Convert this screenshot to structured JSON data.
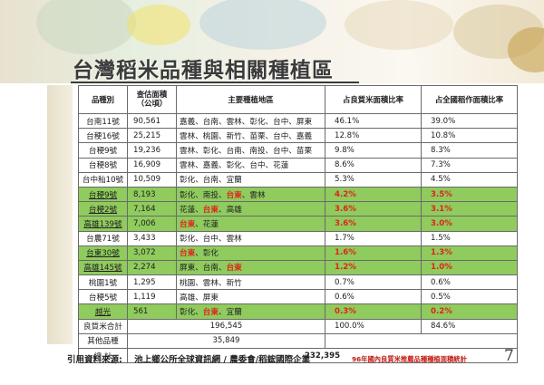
{
  "title": "台灣稻米品種與相關種植區",
  "headers": [
    "品種別",
    "查估面積\n（公頃）",
    "主要種植地區",
    "占良質米面積比率",
    "占全國稻作面積比率"
  ],
  "rows": [
    {
      "variety": "台南11號",
      "area": "90,561",
      "regions": [
        {
          "t": "嘉義、台南、雲林、彰化、台中、屏東"
        }
      ],
      "pct_quality": "46.1%",
      "pct_national": "39.0%",
      "hl": false,
      "red": false
    },
    {
      "variety": "台稉16號",
      "area": "25,215",
      "regions": [
        {
          "t": "雲林、桃園、新竹、苗栗、台中、嘉義"
        }
      ],
      "pct_quality": "12.8%",
      "pct_national": "10.8%",
      "hl": false,
      "red": false
    },
    {
      "variety": "台稉9號",
      "area": "19,236",
      "regions": [
        {
          "t": "雲林、彰化、台南、南投、台中、苗栗"
        }
      ],
      "pct_quality": "9.8%",
      "pct_national": "8.3%",
      "hl": false,
      "red": false
    },
    {
      "variety": "台稉8號",
      "area": "16,909",
      "regions": [
        {
          "t": "雲林、嘉義、彰化、台中、花蓮"
        }
      ],
      "pct_quality": "8.6%",
      "pct_national": "7.3%",
      "hl": false,
      "red": false
    },
    {
      "variety": "台中秈10號",
      "area": "10,509",
      "regions": [
        {
          "t": "彰化、台南、宜蘭"
        }
      ],
      "pct_quality": "5.3%",
      "pct_national": "4.5%",
      "hl": false,
      "red": false
    },
    {
      "variety": "台稉9號",
      "area": "8,193",
      "regions": [
        {
          "t": "彰化、南投、"
        },
        {
          "t": "台東",
          "r": true
        },
        {
          "t": "、雲林"
        }
      ],
      "pct_quality": "4.2%",
      "pct_national": "3.5%",
      "hl": true,
      "red": true,
      "ul": true
    },
    {
      "variety": "台稉2號",
      "area": "7,164",
      "regions": [
        {
          "t": "花蓮、"
        },
        {
          "t": "台東",
          "r": true
        },
        {
          "t": "、高雄"
        }
      ],
      "pct_quality": "3.6%",
      "pct_national": "3.1%",
      "hl": true,
      "red": true,
      "ul": true
    },
    {
      "variety": "高雄139號",
      "area": "7,006",
      "regions": [
        {
          "t": "台東",
          "r": true
        },
        {
          "t": "、花蓮"
        }
      ],
      "pct_quality": "3.6%",
      "pct_national": "3.0%",
      "hl": true,
      "red": true,
      "ul": true
    },
    {
      "variety": "台農71號",
      "area": "3,433",
      "regions": [
        {
          "t": "彰化、台中、雲林"
        }
      ],
      "pct_quality": "1.7%",
      "pct_national": "1.5%",
      "hl": false,
      "red": false
    },
    {
      "variety": "台東30號",
      "area": "3,072",
      "regions": [
        {
          "t": "台東",
          "r": true
        },
        {
          "t": "、彰化"
        }
      ],
      "pct_quality": "1.6%",
      "pct_national": "1.3%",
      "hl": true,
      "red": true,
      "ul": true
    },
    {
      "variety": "高雄145號",
      "area": "2,274",
      "regions": [
        {
          "t": "屏東、台南、"
        },
        {
          "t": "台東",
          "r": true
        }
      ],
      "pct_quality": "1.2%",
      "pct_national": "1.0%",
      "hl": true,
      "red": true,
      "ul": true
    },
    {
      "variety": "桃園1號",
      "area": "1,295",
      "regions": [
        {
          "t": "桃園、雲林、新竹"
        }
      ],
      "pct_quality": "0.7%",
      "pct_national": "0.6%",
      "hl": false,
      "red": false
    },
    {
      "variety": "台稉5號",
      "area": "1,119",
      "regions": [
        {
          "t": "高雄、屏東"
        }
      ],
      "pct_quality": "0.6%",
      "pct_national": "0.5%",
      "hl": false,
      "red": false
    },
    {
      "variety": "越光",
      "area": "561",
      "regions": [
        {
          "t": "彰化、"
        },
        {
          "t": "台東",
          "r": true
        },
        {
          "t": "、宜蘭"
        }
      ],
      "pct_quality": "0.3%",
      "pct_national": "0.2%",
      "hl": true,
      "red": true,
      "ul": true
    }
  ],
  "total_quality": {
    "label": "良質米合計",
    "value": "196,545",
    "pct_quality": "100.0%",
    "pct_national": "84.6%"
  },
  "other": {
    "label": "其他品種",
    "value": "35,849"
  },
  "grand_total": {
    "label": "總  計",
    "value": "232,395"
  },
  "footer": {
    "source_label": "引用資料來源:",
    "source_text": "池上鄉公所全球資訊網 / 農委會/稻鋐國際企業",
    "note": "96年國內良質米推薦品種種植面積統計",
    "page": "7"
  }
}
